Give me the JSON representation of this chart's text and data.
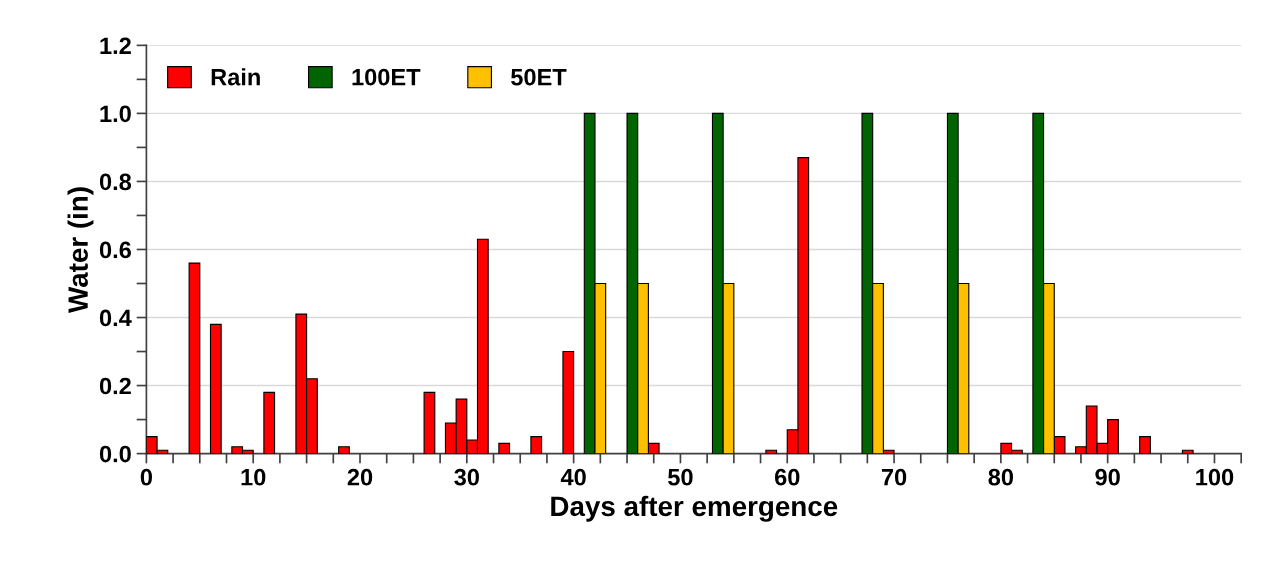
{
  "chart_data": {
    "type": "bar",
    "xlabel": "Days after emergence",
    "ylabel": "Water (in)",
    "series": [
      {
        "name": "Rain",
        "color": "#ff0000",
        "x": [
          0,
          1,
          4,
          6,
          8,
          9,
          11,
          14,
          15,
          18,
          26,
          28,
          29,
          30,
          31,
          33,
          36,
          39,
          47,
          58,
          60,
          61,
          69,
          80,
          81,
          85,
          87,
          88,
          89,
          90,
          93,
          97
        ],
        "values": [
          0.05,
          0.01,
          0.56,
          0.38,
          0.02,
          0.01,
          0.18,
          0.41,
          0.22,
          0.02,
          0.18,
          0.09,
          0.16,
          0.04,
          0.63,
          0.03,
          0.05,
          0.3,
          0.03,
          0.01,
          0.07,
          0.87,
          0.01,
          0.03,
          0.01,
          0.05,
          0.02,
          0.14,
          0.03,
          0.1,
          0.05,
          0.01
        ]
      },
      {
        "name": "100ET",
        "color": "#006400",
        "x": [
          41,
          45,
          53,
          67,
          75,
          83
        ],
        "values": [
          1.0,
          1.0,
          1.0,
          1.0,
          1.0,
          1.0
        ]
      },
      {
        "name": "50ET",
        "color": "#ffc000",
        "x": [
          42,
          46,
          54,
          68,
          76,
          84
        ],
        "values": [
          0.5,
          0.5,
          0.5,
          0.5,
          0.5,
          0.5
        ]
      }
    ],
    "xlim": [
      0,
      102.5
    ],
    "xticks": [
      0,
      {
        "value": 2.5,
        "label": null
      },
      {
        "value": 5,
        "label": null
      },
      {
        "value": 7.5,
        "label": null
      },
      10,
      {
        "value": 12.5,
        "label": null
      },
      {
        "value": 15,
        "label": null
      },
      {
        "value": 17.5,
        "label": null
      },
      20,
      {
        "value": 22.5,
        "label": null
      },
      {
        "value": 25,
        "label": null
      },
      {
        "value": 27.5,
        "label": null
      },
      30,
      {
        "value": 32.5,
        "label": null
      },
      {
        "value": 35,
        "label": null
      },
      {
        "value": 37.5,
        "label": null
      },
      40,
      {
        "value": 42.5,
        "label": null
      },
      {
        "value": 45,
        "label": null
      },
      {
        "value": 47.5,
        "label": null
      },
      50,
      {
        "value": 52.5,
        "label": null
      },
      {
        "value": 55,
        "label": null
      },
      {
        "value": 57.5,
        "label": null
      },
      60,
      {
        "value": 62.5,
        "label": null
      },
      {
        "value": 65,
        "label": null
      },
      {
        "value": 67.5,
        "label": null
      },
      70,
      {
        "value": 72.5,
        "label": null
      },
      {
        "value": 75,
        "label": null
      },
      {
        "value": 77.5,
        "label": null
      },
      80,
      {
        "value": 82.5,
        "label": null
      },
      {
        "value": 85,
        "label": null
      },
      {
        "value": 87.5,
        "label": null
      },
      90,
      {
        "value": 92.5,
        "label": null
      },
      {
        "value": 95,
        "label": null
      },
      {
        "value": 97.5,
        "label": null
      },
      100,
      {
        "value": 102.5,
        "label": null
      }
    ],
    "ylim": [
      0,
      1.2
    ],
    "yticks": [
      {
        "value": 0,
        "label": "0.0"
      },
      {
        "value": 0.1,
        "label": null
      },
      {
        "value": 0.2,
        "label": "0.2"
      },
      {
        "value": 0.3,
        "label": null
      },
      {
        "value": 0.4,
        "label": "0.4"
      },
      {
        "value": 0.5,
        "label": null
      },
      {
        "value": 0.6,
        "label": "0.6"
      },
      {
        "value": 0.7,
        "label": null
      },
      {
        "value": 0.8,
        "label": "0.8"
      },
      {
        "value": 0.9,
        "label": null
      },
      {
        "value": 1.0,
        "label": "1.0"
      },
      {
        "value": 1.1,
        "label": null
      },
      {
        "value": 1.2,
        "label": "1.2"
      }
    ],
    "grid": "y",
    "legend": "top left"
  }
}
